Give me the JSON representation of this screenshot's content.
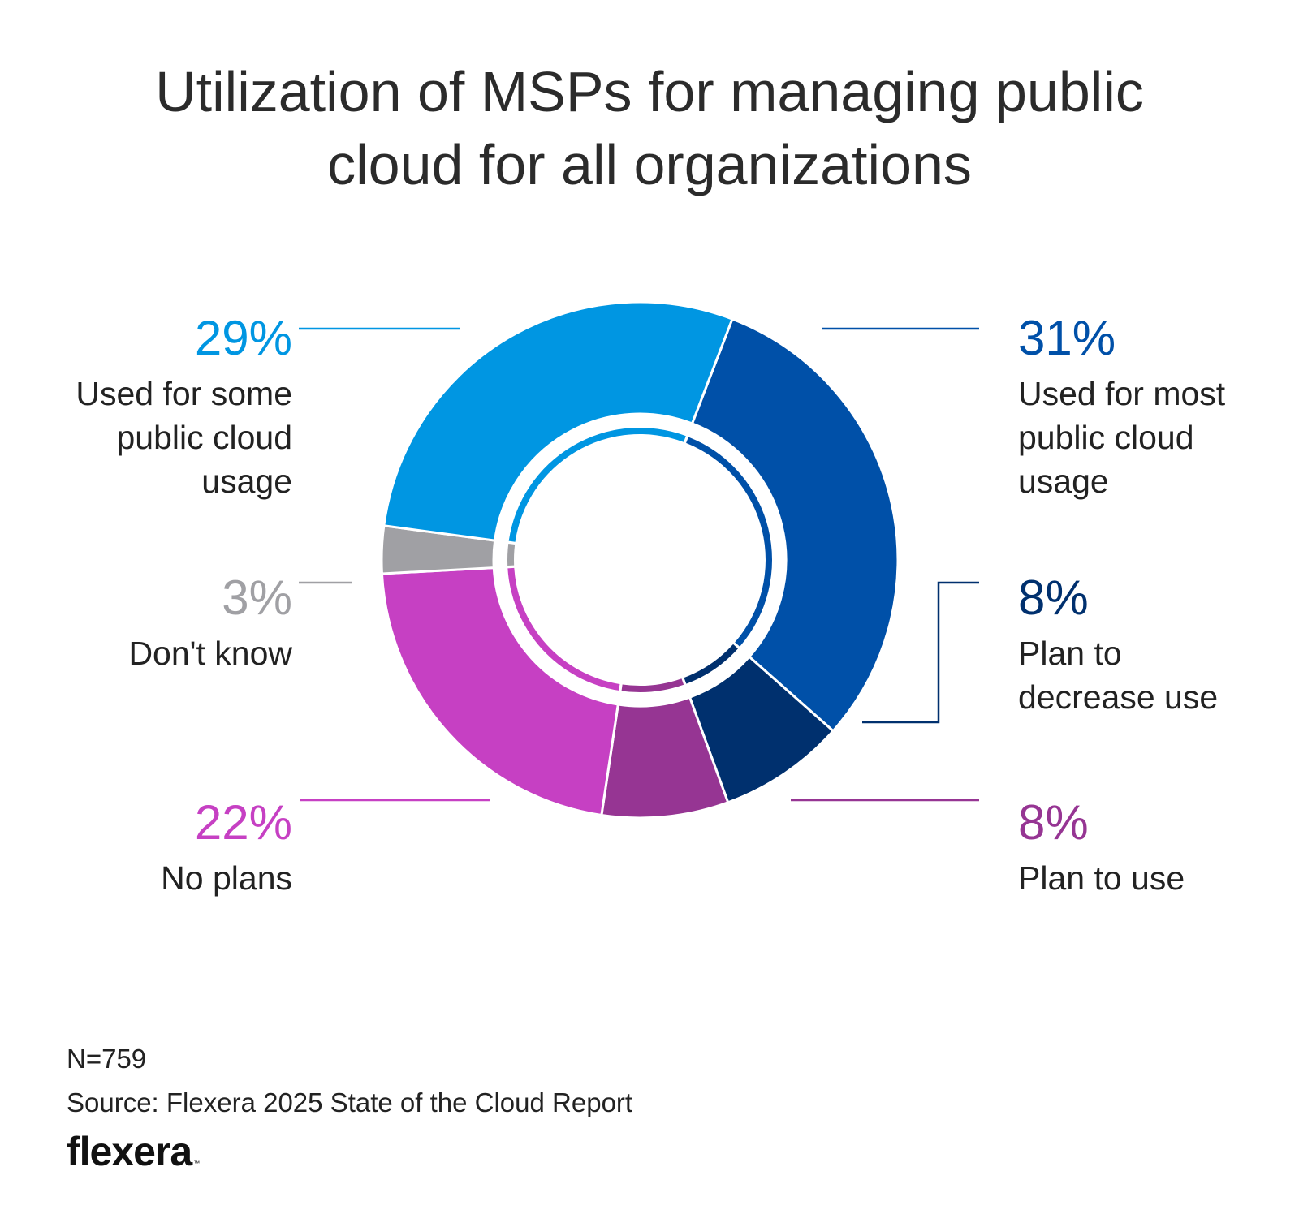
{
  "chart_data": {
    "type": "donut",
    "title": [
      "Utilization of MSPs for managing public",
      "cloud for all organizations"
    ],
    "unit": "%",
    "slices": [
      {
        "key": "most",
        "label": "Used for most public cloud usage",
        "lines": [
          "Used for most",
          "public cloud",
          "usage"
        ],
        "value": 31,
        "display": "31%",
        "color": "#0050a8"
      },
      {
        "key": "decrease",
        "label": "Plan to decrease use",
        "lines": [
          "Plan to",
          "decrease use"
        ],
        "value": 8,
        "display": "8%",
        "color": "#00306e"
      },
      {
        "key": "plan",
        "label": "Plan to use",
        "lines": [
          "Plan to use"
        ],
        "value": 8,
        "display": "8%",
        "color": "#963593"
      },
      {
        "key": "none",
        "label": "No plans",
        "lines": [
          "No plans"
        ],
        "value": 22,
        "display": "22%",
        "color": "#c640c3"
      },
      {
        "key": "dont",
        "label": "Don't know",
        "lines": [
          "Don't know"
        ],
        "value": 3,
        "display": "3%",
        "color": "#a0a0a4"
      },
      {
        "key": "some",
        "label": "Used for some public cloud usage",
        "lines": [
          "Used for some",
          "public cloud",
          "usage"
        ],
        "value": 29,
        "display": "29%",
        "color": "#0096e2"
      }
    ],
    "inner_ring": {
      "groups": [
        {
          "label": "Used for most public cloud usage",
          "color": "#0050a8",
          "slices": [
            "most"
          ]
        },
        {
          "label": "Plan to decrease use",
          "color": "#00306e",
          "slices": [
            "decrease"
          ]
        },
        {
          "label": "Plan to use",
          "color": "#963593",
          "slices": [
            "plan"
          ]
        },
        {
          "label": "No plans",
          "color": "#c640c3",
          "slices": [
            "none"
          ]
        },
        {
          "label": "Don't know",
          "color": "#a0a0a4",
          "slices": [
            "dont"
          ]
        },
        {
          "label": "Used for some public cloud usage",
          "color": "#0096e2",
          "slices": [
            "some"
          ]
        }
      ]
    }
  },
  "footnote": {
    "n": "N=759",
    "source": "Source: Flexera 2025 State of the Cloud Report"
  },
  "logo": {
    "text": "flexera",
    "tm": "™"
  }
}
